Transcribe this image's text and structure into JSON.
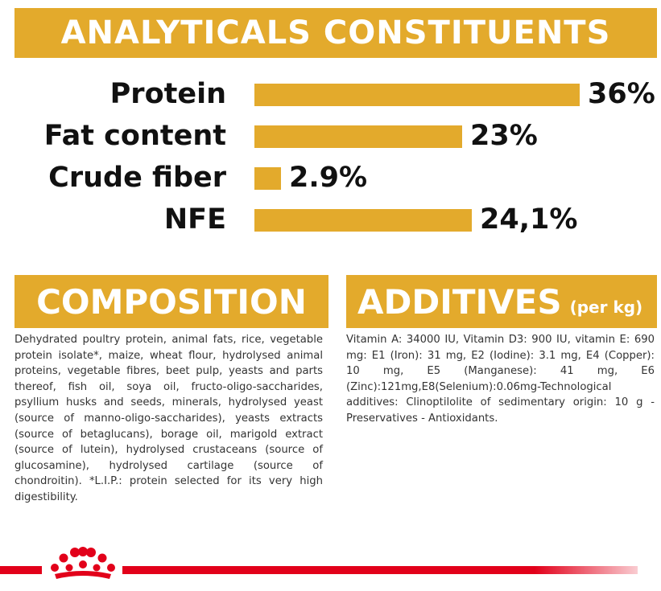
{
  "analytics": {
    "title": "ANALYTICALS CONSTITUENTS",
    "rows": [
      {
        "label": "Protein",
        "value": "36%",
        "percent": 36
      },
      {
        "label": "Fat content",
        "value": "23%",
        "percent": 23
      },
      {
        "label": "Crude fiber",
        "value": "2.9%",
        "percent": 2.9
      },
      {
        "label": "NFE",
        "value": "24,1%",
        "percent": 24.1
      }
    ]
  },
  "composition": {
    "title": "COMPOSITION",
    "text": "Dehydrated poultry protein, animal fats, rice, vegetable protein isolate*, maize, wheat flour, hydrolysed animal proteins, vegetable fibres, beet pulp, yeasts and parts thereof, fish oil, soya oil, fructo-oligo-saccharides, psyllium husks and seeds, minerals, hydrolysed yeast (source of manno-oligo-saccharides), yeasts extracts (source of betaglucans), borage oil, marigold extract (source of lutein), hydrolysed crustaceans (source of glucosamine), hydrolysed cartilage (source of chondroitin). *L.I.P.: protein selected for its very high digestibility."
  },
  "additives": {
    "title": "ADDITIVES",
    "subtitle": "(per kg)",
    "text": "Vitamin A: 34000 IU, Vitamin D3: 900 IU, vitamin E: 690 mg: E1 (Iron): 31 mg, E2 (Iodine): 3.1 mg, E4 (Copper): 10 mg, E5 (Manganese): 41 mg, E6 (Zinc):121mg,E8(Selenium):0.06mg-Technological additives: Clinoptilolite of sedimentary origin: 10 g - Preservatives - Antioxidants."
  },
  "colors": {
    "accent": "#e3aa2c",
    "brand_red": "#e2001a"
  },
  "icons": {
    "logo": "royal-canin-crown-icon"
  }
}
